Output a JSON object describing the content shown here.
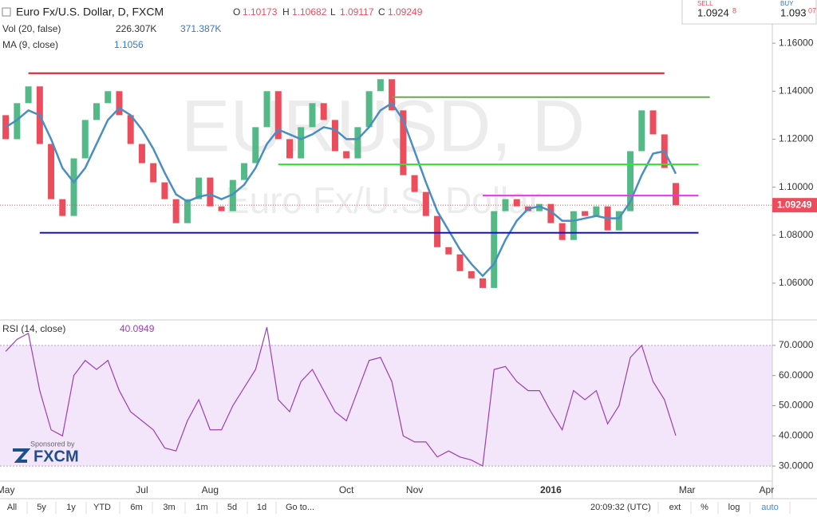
{
  "chart_data": [
    {
      "type": "candlestick",
      "title": "Euro Fx/U.S. Dollar, D, FXCM",
      "watermark": "EURUSD, D",
      "watermark_subtitle": "Euro Fx/U.S. Dollar",
      "categories": [
        "May",
        null,
        null,
        null,
        null,
        null,
        null,
        null,
        null,
        null,
        null,
        null,
        "Jul",
        null,
        null,
        null,
        null,
        null,
        "Aug",
        null,
        null,
        null,
        null,
        null,
        null,
        null,
        null,
        null,
        null,
        null,
        "Oct",
        null,
        null,
        null,
        null,
        null,
        "Nov",
        null,
        null,
        null,
        null,
        null,
        null,
        null,
        null,
        null,
        null,
        null,
        "2016",
        null,
        null,
        null,
        null,
        null,
        null,
        null,
        null,
        null,
        null,
        null,
        "Mar",
        null,
        null,
        null,
        null,
        null,
        null,
        "Apr"
      ],
      "open": [
        1.13,
        1.12,
        1.135,
        1.142,
        1.118,
        1.095,
        1.088,
        1.112,
        1.128,
        1.135,
        1.14,
        1.13,
        1.118,
        1.11,
        1.102,
        1.095,
        1.085,
        1.095,
        1.104,
        1.092,
        1.09,
        1.103,
        1.11,
        1.125,
        1.14,
        1.12,
        1.112,
        1.125,
        1.135,
        1.128,
        1.115,
        1.112,
        1.125,
        1.14,
        1.145,
        1.132,
        1.105,
        1.098,
        1.088,
        1.075,
        1.072,
        1.065,
        1.062,
        1.058,
        1.09,
        1.095,
        1.092,
        1.09,
        1.093,
        1.085,
        1.078,
        1.09,
        1.088,
        1.092,
        1.082,
        1.09,
        1.115,
        1.132,
        1.122,
        1.10173,
        null,
        null,
        null,
        null,
        null,
        null,
        null,
        null
      ],
      "close": [
        1.12,
        1.135,
        1.142,
        1.118,
        1.095,
        1.088,
        1.112,
        1.128,
        1.135,
        1.14,
        1.13,
        1.118,
        1.11,
        1.102,
        1.095,
        1.085,
        1.095,
        1.104,
        1.092,
        1.09,
        1.103,
        1.11,
        1.125,
        1.14,
        1.12,
        1.112,
        1.125,
        1.135,
        1.128,
        1.115,
        1.112,
        1.125,
        1.14,
        1.145,
        1.132,
        1.105,
        1.098,
        1.088,
        1.075,
        1.072,
        1.065,
        1.062,
        1.058,
        1.09,
        1.095,
        1.092,
        1.09,
        1.093,
        1.085,
        1.078,
        1.09,
        1.088,
        1.092,
        1.082,
        1.09,
        1.115,
        1.132,
        1.122,
        1.108,
        1.09249,
        null,
        null,
        null,
        null,
        null,
        null,
        null,
        null
      ],
      "up_color": "#53b987",
      "down_color": "#eb4d5c",
      "series": [
        {
          "name": "MA (9, close)",
          "color": "#4a8ec2",
          "values": [
            1.125,
            1.128,
            1.132,
            1.13,
            1.12,
            1.108,
            1.102,
            1.108,
            1.118,
            1.128,
            1.133,
            1.13,
            1.124,
            1.116,
            1.106,
            1.097,
            1.094,
            1.096,
            1.097,
            1.095,
            1.097,
            1.101,
            1.108,
            1.118,
            1.124,
            1.122,
            1.12,
            1.122,
            1.125,
            1.124,
            1.12,
            1.12,
            1.125,
            1.132,
            1.135,
            1.128,
            1.115,
            1.102,
            1.09,
            1.082,
            1.074,
            1.068,
            1.063,
            1.068,
            1.078,
            1.086,
            1.091,
            1.092,
            1.09,
            1.086,
            1.086,
            1.087,
            1.088,
            1.087,
            1.087,
            1.094,
            1.105,
            1.114,
            1.115,
            1.1056,
            null,
            null,
            null,
            null,
            null,
            null,
            null,
            null
          ]
        }
      ],
      "last_bar": {
        "open": 1.10173,
        "high": 1.10682,
        "low": 1.09117,
        "close": 1.09249
      },
      "levels": [
        {
          "color": "#e01b1b",
          "value": 1.1475,
          "start": 2,
          "end": 58
        },
        {
          "color": "#6aa84f",
          "value": 1.1375,
          "start": 34,
          "end": 62
        },
        {
          "color": "#33e633",
          "value": 1.1095,
          "start": 24,
          "end": 61
        },
        {
          "color": "#ee33ee",
          "value": 1.0965,
          "start": 42,
          "end": 61
        },
        {
          "color": "#1414c8",
          "value": 1.081,
          "start": 3,
          "end": 61
        }
      ],
      "ylim": [
        1.045,
        1.178
      ],
      "yticks": [
        {
          "value": 1.06,
          "label": "1.06000"
        },
        {
          "value": 1.08,
          "label": "1.08000"
        },
        {
          "value": 1.1,
          "label": "1.10000"
        },
        {
          "value": 1.12,
          "label": "1.12000"
        },
        {
          "value": 1.14,
          "label": "1.14000"
        },
        {
          "value": 1.16,
          "label": "1.16000"
        }
      ]
    },
    {
      "type": "line",
      "series": [
        {
          "name": "RSI (14, close)",
          "color": "#9b3fb5",
          "values": [
            68,
            72,
            74,
            55,
            42,
            40,
            60,
            65,
            62,
            65,
            55,
            48,
            45,
            42,
            36,
            35,
            45,
            52,
            42,
            42,
            50,
            56,
            62,
            76,
            52,
            48,
            58,
            62,
            55,
            48,
            45,
            55,
            65,
            66,
            58,
            40,
            38,
            38,
            33,
            35,
            33,
            32,
            30,
            62,
            63,
            58,
            55,
            55,
            48,
            42,
            55,
            52,
            55,
            44,
            50,
            66,
            70,
            58,
            52,
            40.0949,
            null,
            null,
            null,
            null,
            null,
            null,
            null,
            null
          ]
        }
      ],
      "band": [
        30,
        70
      ],
      "ylim": [
        25.8,
        77.9
      ],
      "yticks": [
        {
          "value": 30,
          "label": "30.0000"
        },
        {
          "value": 40,
          "label": "40.0000"
        },
        {
          "value": 50,
          "label": "50.0000"
        },
        {
          "value": 60,
          "label": "60.0000"
        },
        {
          "value": 70,
          "label": "70.0000"
        }
      ]
    }
  ],
  "ui": {
    "ohlc_labels": [
      "O",
      "H",
      "L",
      "C"
    ],
    "vol_legend": {
      "name": "Vol (20, false)",
      "values": [
        "226.307K",
        "371.387K"
      ]
    },
    "quote": {
      "sell_label": "SELL",
      "sell": "1.0924",
      "sell_frac": "8",
      "buy_label": "BUY",
      "buy": "1.093",
      "buy_frac": "07"
    },
    "sponsor": {
      "label": "Sponsored by",
      "brand": "FXCM"
    },
    "toolbar": {
      "ranges": [
        "All",
        "5y",
        "1y",
        "YTD",
        "6m",
        "3m",
        "1m",
        "5d",
        "1d"
      ],
      "goto": "Go to...",
      "time": "20:09:32 (UTC)",
      "options": [
        "ext",
        "%",
        "log",
        "auto"
      ]
    }
  }
}
